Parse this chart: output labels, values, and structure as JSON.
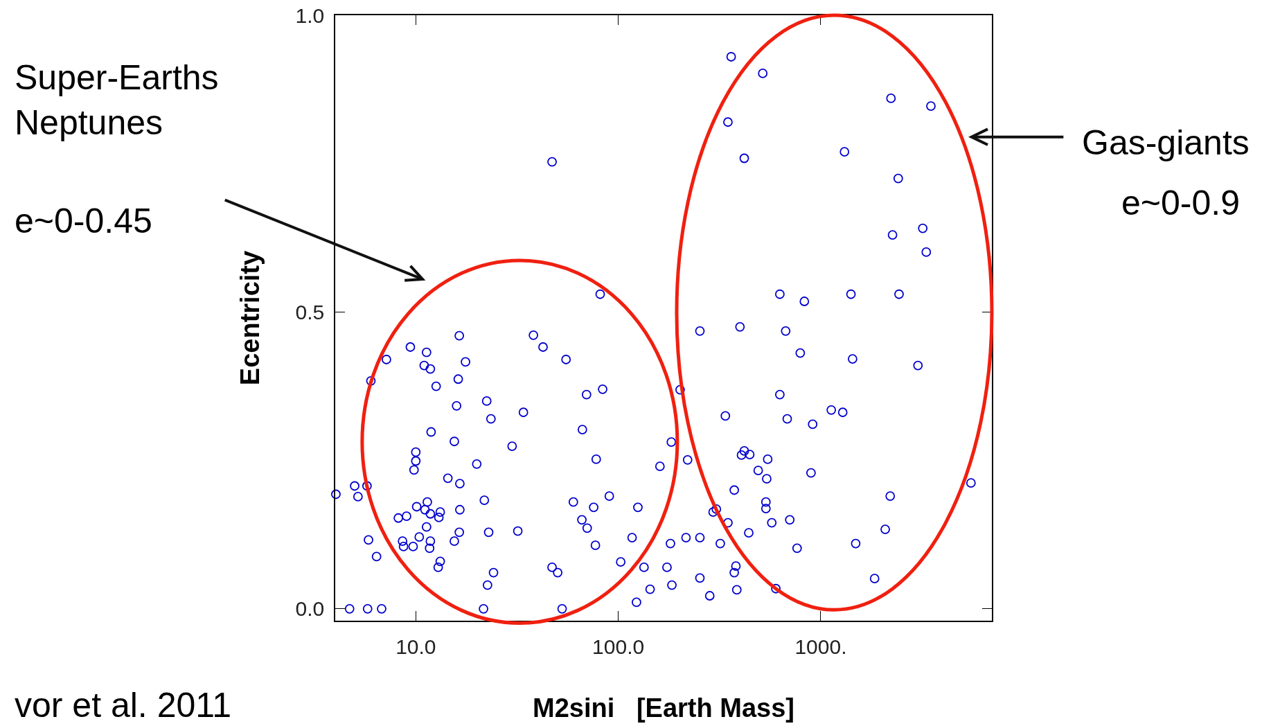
{
  "chart_data": {
    "type": "scatter",
    "xlabel": "M2sini   [Earth Mass]",
    "ylabel": "Ecentricity",
    "annotations": [
      "Super-Earths\nNeptunes",
      "e~0-0.45",
      "Gas-giants",
      "e~0-0.9",
      "vor et al. 2011"
    ],
    "log": "x",
    "grid": false,
    "marker": "circle",
    "xlim": [
      4,
      7000
    ],
    "ylim": [
      -0.02,
      1.0
    ],
    "xticks": [
      {
        "value": 10,
        "label": "10.0"
      },
      {
        "value": 100,
        "label": "100.0"
      },
      {
        "value": 1000,
        "label": "1000."
      }
    ],
    "yticks": [
      {
        "value": 0,
        "label": "0.0"
      },
      {
        "value": 0.5,
        "label": "0.5"
      },
      {
        "value": 1,
        "label": "1.0"
      }
    ],
    "series": [
      {
        "color": "#0000cc",
        "x": [
          4.03,
          4.71,
          5.78,
          6.78,
          4.99,
          5.74,
          5.18,
          6.0,
          7.16,
          5.84,
          6.4,
          9.4,
          11.3,
          11.0,
          11.8,
          12.6,
          16.4,
          17.6,
          16.2,
          15.9,
          11.9,
          10,
          10,
          9.8,
          15.5,
          14.4,
          16.5,
          11.4,
          10.1,
          11.1,
          11.8,
          13.2,
          13.0,
          8.2,
          9.0,
          11.3,
          10.4,
          8.6,
          8.7,
          9.7,
          11.8,
          11.7,
          13.2,
          12.9,
          16.4,
          15.5,
          16.5,
          22.4,
          23.5,
          20.0,
          21.8,
          22.9,
          24.2,
          22.6,
          21.6,
          29.9,
          34.0,
          31.9,
          38.1,
          42.5,
          55.2,
          47.1,
          47.1,
          50.2,
          52.8,
          69.7,
          66.5,
          83.7,
          81.4,
          77.8,
          60.0,
          66.1,
          70.2,
          75.6,
          90.3,
          77.1,
          102.8,
          117,
          125,
          123,
          143.6,
          134,
          160.6,
          182.8,
          174,
          181,
          184,
          202,
          220,
          216,
          253,
          253,
          253,
          283,
          294,
          305,
          319,
          338,
          348,
          348,
          361,
          374,
          374,
          385,
          381,
          399,
          419,
          517,
          406,
          419,
          446,
          441,
          491,
          547,
          541,
          536,
          536,
          573,
          600,
          628,
          628,
          671,
          683,
          703,
          764,
          792,
          830,
          912,
          895,
          1127,
          1284,
          1310,
          1410,
          1436,
          1488,
          1845,
          2082,
          2203,
          2222,
          2262,
          2414,
          2436,
          3020,
          3190,
          3320,
          3500,
          5520
        ],
        "values": [
          0.193,
          0,
          0,
          0,
          0.207,
          0.207,
          0.189,
          0.384,
          0.42,
          0.116,
          0.088,
          0.441,
          0.432,
          0.41,
          0.404,
          0.375,
          0.46,
          0.416,
          0.387,
          0.342,
          0.298,
          0.264,
          0.249,
          0.234,
          0.282,
          0.22,
          0.211,
          0.18,
          0.172,
          0.167,
          0.16,
          0.163,
          0.154,
          0.153,
          0.156,
          0.138,
          0.121,
          0.114,
          0.105,
          0.105,
          0.114,
          0.102,
          0.08,
          0.07,
          0.129,
          0.114,
          0.167,
          0.35,
          0.32,
          0.244,
          0.183,
          0.129,
          0.061,
          0.04,
          0,
          0.274,
          0.331,
          0.131,
          0.461,
          0.441,
          0.42,
          0.753,
          0.07,
          0.061,
          0,
          0.361,
          0.302,
          0.37,
          0.53,
          0.252,
          0.18,
          0.15,
          0.136,
          0.171,
          0.19,
          0.107,
          0.079,
          0.12,
          0.171,
          0.011,
          0.033,
          0.07,
          0.24,
          0.281,
          0.07,
          0.11,
          0.04,
          0.369,
          0.251,
          0.12,
          0.468,
          0.12,
          0.052,
          0.022,
          0.163,
          0.168,
          0.11,
          0.325,
          0.145,
          0.82,
          0.93,
          0.2,
          0.061,
          0.032,
          0.072,
          0.475,
          0.759,
          0.902,
          0.259,
          0.266,
          0.26,
          0.128,
          0.233,
          0.252,
          0.219,
          0.18,
          0.169,
          0.145,
          0.034,
          0.53,
          0.361,
          0.468,
          0.32,
          0.15,
          0.102,
          0.431,
          0.518,
          0.311,
          0.229,
          0.335,
          0.331,
          0.77,
          0.53,
          0.421,
          0.11,
          0.051,
          0.134,
          0.19,
          0.86,
          0.63,
          0.725,
          0.53,
          0.41,
          0.641,
          0.601,
          0.847,
          0.212
        ]
      }
    ]
  }
}
